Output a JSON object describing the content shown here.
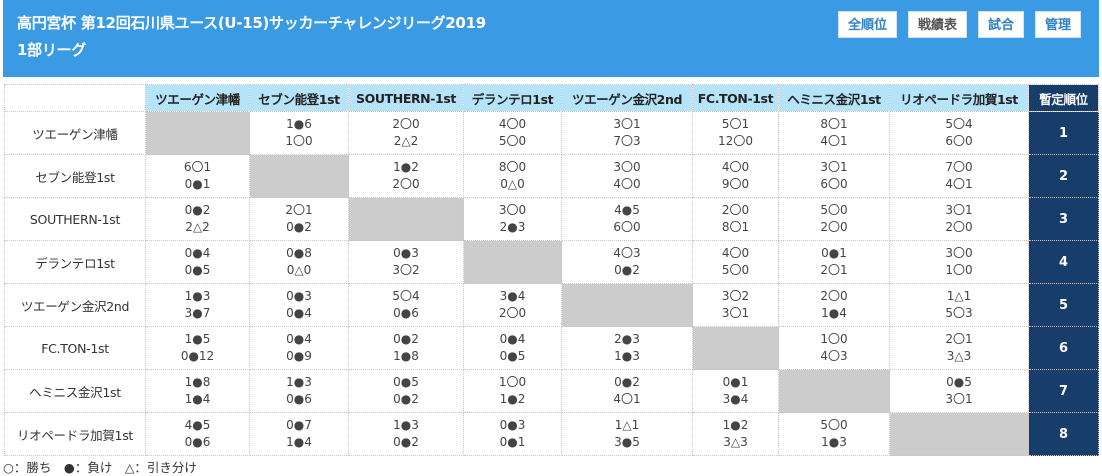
{
  "header": {
    "title": "高円宮杯 第12回石川県ユース(U-15)サッカーチャレンジリーグ2019 1部リーグ",
    "buttons": [
      "全順位",
      "戦績表",
      "試合",
      "管理"
    ],
    "active_button": "戦績表",
    "background": "#3a9ae4"
  },
  "table": {
    "rank_header": "暫定順位",
    "teams": [
      "ツエーゲン津幡",
      "セブン能登1st",
      "SOUTHERN-1st",
      "デランテロ1st",
      "ツエーゲン金沢2nd",
      "FC.TON-1st",
      "ヘミニス金沢1st",
      "リオペードラ加賀1st"
    ],
    "rows": [
      {
        "team": "ツエーゲン津幡",
        "rank": "1",
        "cells": [
          null,
          [
            "1●6",
            "1〇0"
          ],
          [
            "2〇0",
            "2△2"
          ],
          [
            "4〇0",
            "5〇0"
          ],
          [
            "3〇1",
            "7〇3"
          ],
          [
            "5〇1",
            "12〇0"
          ],
          [
            "8〇1",
            "4〇1"
          ],
          [
            "5〇4",
            "6〇0"
          ]
        ]
      },
      {
        "team": "セブン能登1st",
        "rank": "2",
        "cells": [
          [
            "6〇1",
            "0●1"
          ],
          null,
          [
            "1●2",
            "2〇0"
          ],
          [
            "8〇0",
            "0△0"
          ],
          [
            "3〇0",
            "4〇0"
          ],
          [
            "4〇0",
            "9〇0"
          ],
          [
            "3〇1",
            "6〇0"
          ],
          [
            "7〇0",
            "4〇1"
          ]
        ]
      },
      {
        "team": "SOUTHERN-1st",
        "rank": "3",
        "cells": [
          [
            "0●2",
            "2△2"
          ],
          [
            "2〇1",
            "0●2"
          ],
          null,
          [
            "3〇0",
            "2●3"
          ],
          [
            "4●5",
            "6〇0"
          ],
          [
            "2〇0",
            "8〇1"
          ],
          [
            "5〇0",
            "2〇0"
          ],
          [
            "3〇1",
            "2〇0"
          ]
        ]
      },
      {
        "team": "デランテロ1st",
        "rank": "4",
        "cells": [
          [
            "0●4",
            "0●5"
          ],
          [
            "0●8",
            "0△0"
          ],
          [
            "0●3",
            "3〇2"
          ],
          null,
          [
            "4〇3",
            "0●2"
          ],
          [
            "4〇0",
            "5〇0"
          ],
          [
            "0●1",
            "2〇1"
          ],
          [
            "3〇0",
            "1〇0"
          ]
        ]
      },
      {
        "team": "ツエーゲン金沢2nd",
        "rank": "5",
        "cells": [
          [
            "1●3",
            "3●7"
          ],
          [
            "0●3",
            "0●4"
          ],
          [
            "5〇4",
            "0●6"
          ],
          [
            "3●4",
            "2〇0"
          ],
          null,
          [
            "3〇2",
            "3〇1"
          ],
          [
            "2〇0",
            "1●4"
          ],
          [
            "1△1",
            "5〇3"
          ]
        ]
      },
      {
        "team": "FC.TON-1st",
        "rank": "6",
        "cells": [
          [
            "1●5",
            "0●12"
          ],
          [
            "0●4",
            "0●9"
          ],
          [
            "0●2",
            "1●8"
          ],
          [
            "0●4",
            "0●5"
          ],
          [
            "2●3",
            "1●3"
          ],
          null,
          [
            "1〇0",
            "4〇3"
          ],
          [
            "2〇1",
            "3△3"
          ]
        ]
      },
      {
        "team": "ヘミニス金沢1st",
        "rank": "7",
        "cells": [
          [
            "1●8",
            "1●4"
          ],
          [
            "1●3",
            "0●6"
          ],
          [
            "0●5",
            "0●2"
          ],
          [
            "1〇0",
            "1●2"
          ],
          [
            "0●2",
            "4〇1"
          ],
          [
            "0●1",
            "3●4"
          ],
          null,
          [
            "0●5",
            "3〇1"
          ]
        ]
      },
      {
        "team": "リオペードラ加賀1st",
        "rank": "8",
        "cells": [
          [
            "4●5",
            "0●6"
          ],
          [
            "0●7",
            "1●4"
          ],
          [
            "1●3",
            "0●2"
          ],
          [
            "0●3",
            "0●1"
          ],
          [
            "1△1",
            "3●5"
          ],
          [
            "1●2",
            "3△3"
          ],
          [
            "5〇0",
            "1●3"
          ],
          null
        ]
      }
    ]
  },
  "legend": "○：勝ち　●：負け　△：引き分け",
  "colors": {
    "header_bg": "#3a9ae4",
    "column_header_bg": "#b5e4f9",
    "rank_bg": "#173d6b",
    "self_cell_bg": "#cccccc"
  }
}
